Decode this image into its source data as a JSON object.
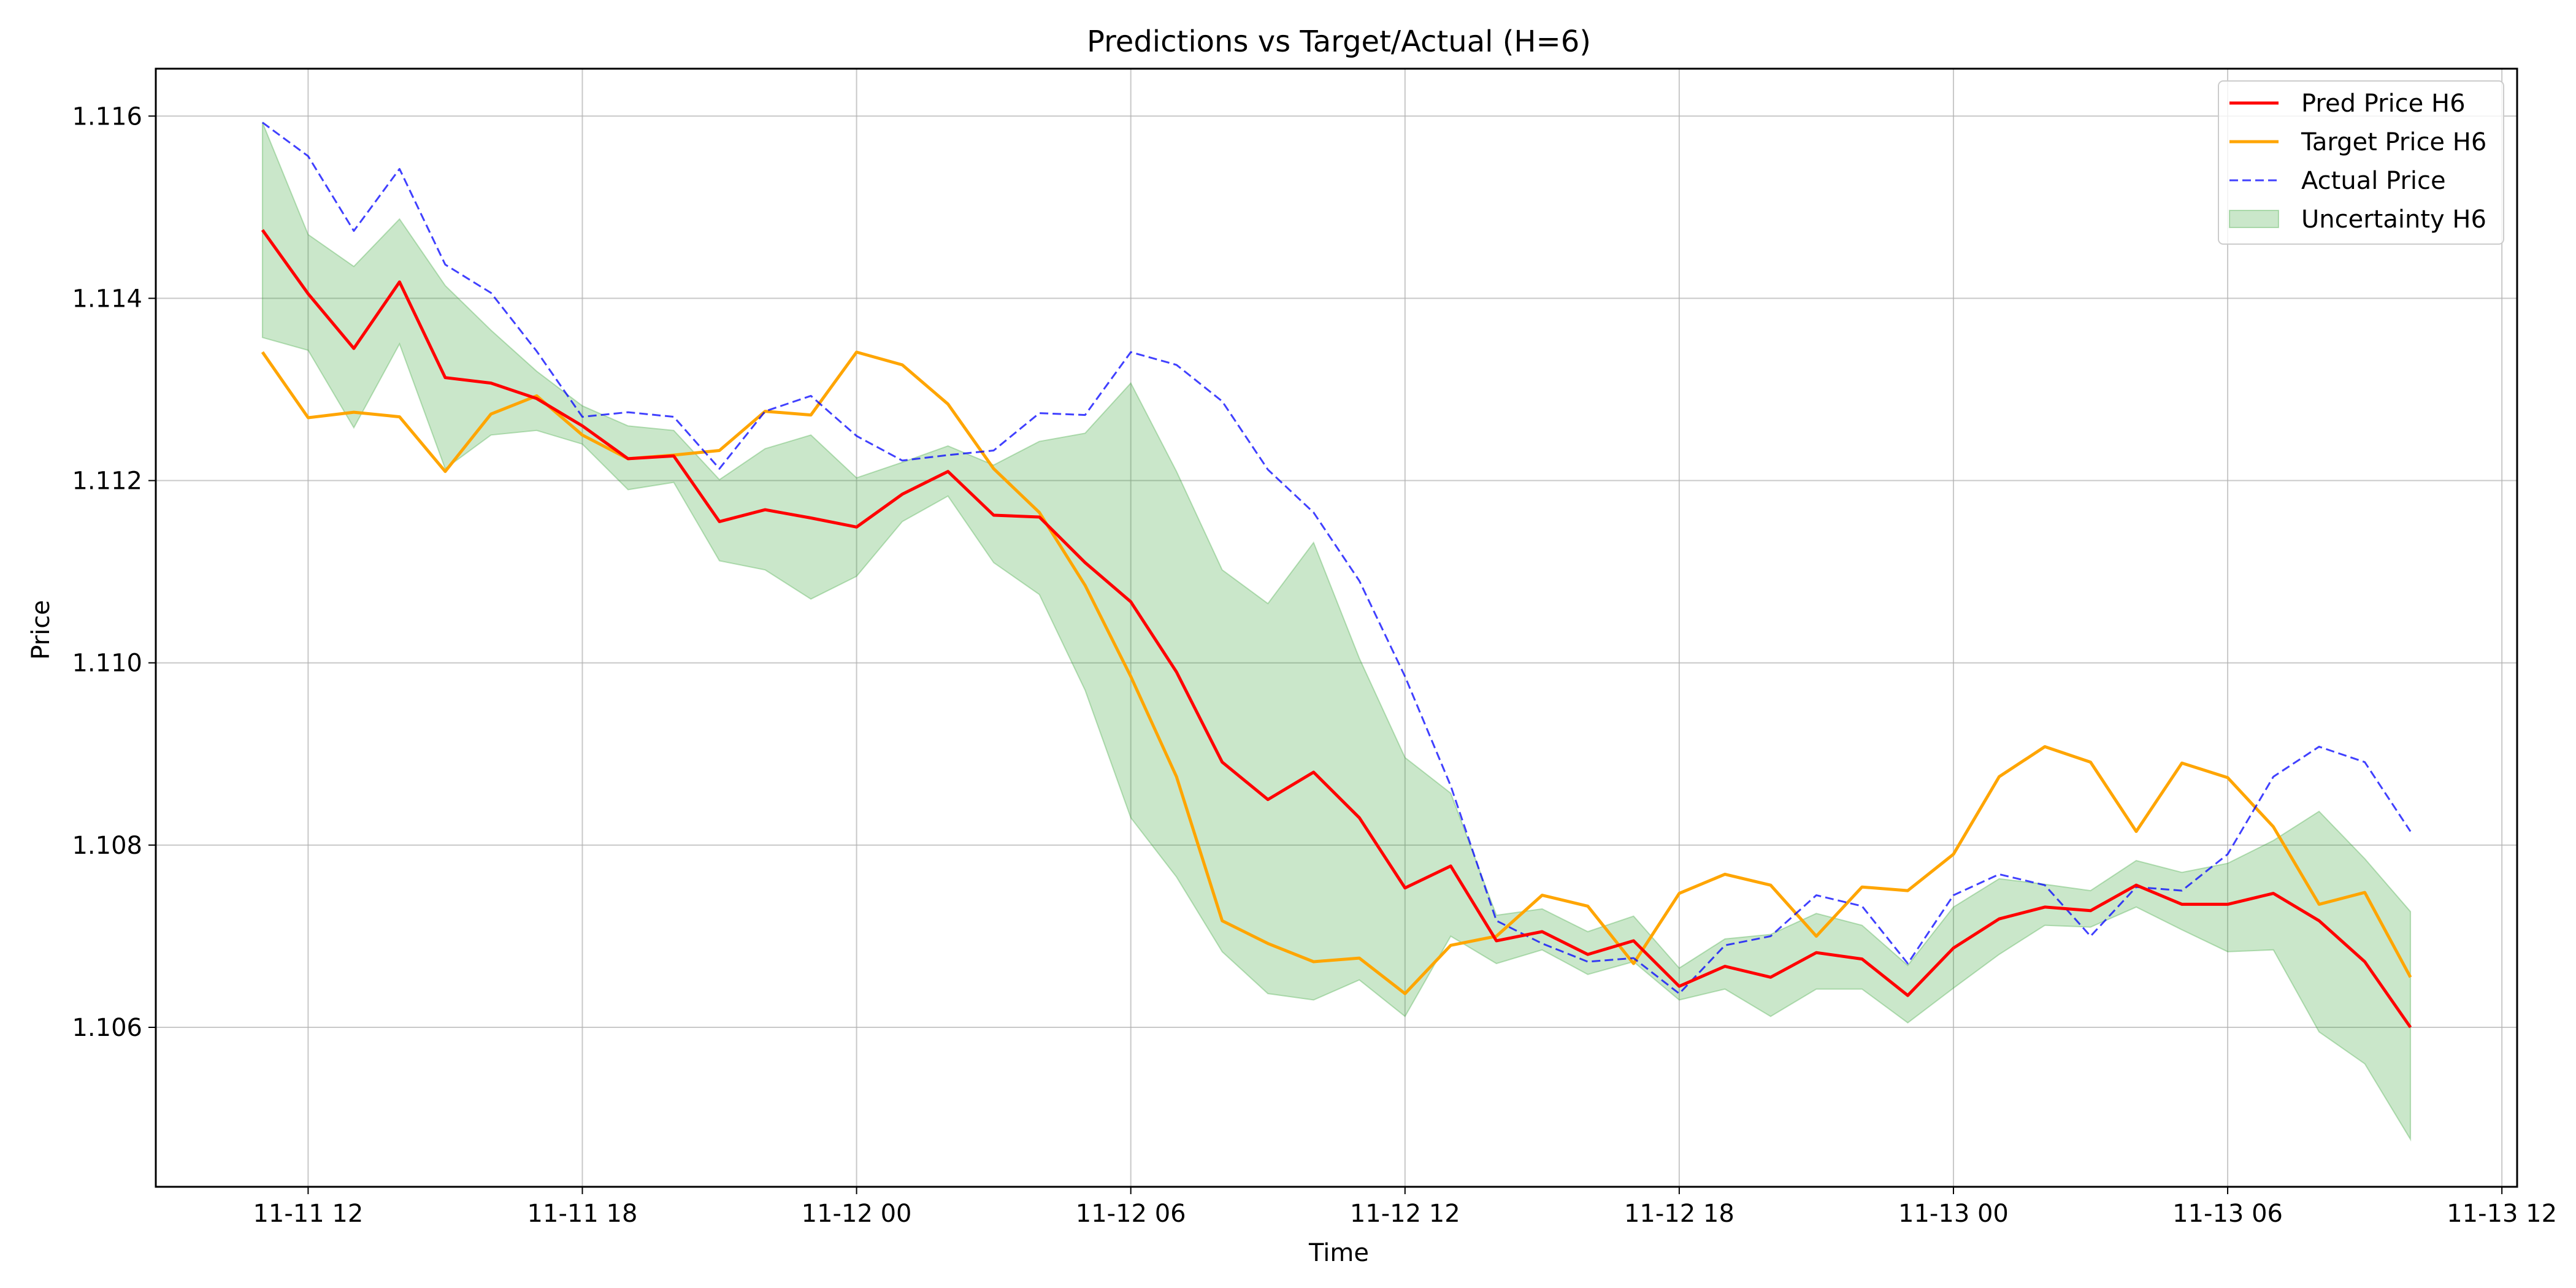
{
  "chart_data": {
    "type": "line",
    "title": "Predictions vs Target/Actual (H=6)",
    "xlabel": "Time",
    "ylabel": "Price",
    "x_start": "2023-11-11 11:00",
    "x_step_hours": 1,
    "xlim": [
      "2023-11-11 08:40",
      "2023-11-13 12:20"
    ],
    "ylim": [
      1.10425,
      1.11652
    ],
    "x_ticks": [
      {
        "t": "2023-11-11 12:00",
        "label": "11-11 12"
      },
      {
        "t": "2023-11-11 18:00",
        "label": "11-11 18"
      },
      {
        "t": "2023-11-12 00:00",
        "label": "11-12 00"
      },
      {
        "t": "2023-11-12 06:00",
        "label": "11-12 06"
      },
      {
        "t": "2023-11-12 12:00",
        "label": "11-12 12"
      },
      {
        "t": "2023-11-12 18:00",
        "label": "11-12 18"
      },
      {
        "t": "2023-11-13 00:00",
        "label": "11-13 00"
      },
      {
        "t": "2023-11-13 06:00",
        "label": "11-13 06"
      },
      {
        "t": "2023-11-13 12:00",
        "label": "11-13 12"
      }
    ],
    "y_ticks": [
      {
        "v": 1.106,
        "label": "1.106"
      },
      {
        "v": 1.108,
        "label": "1.108"
      },
      {
        "v": 1.11,
        "label": "1.110"
      },
      {
        "v": 1.112,
        "label": "1.112"
      },
      {
        "v": 1.114,
        "label": "1.114"
      },
      {
        "v": 1.116,
        "label": "1.116"
      }
    ],
    "grid": true,
    "legend_position": "top-right",
    "series": [
      {
        "name": "Pred Price H6",
        "kind": "line",
        "color": "#ff0000",
        "style": "solid",
        "values": [
          1.11475,
          1.11405,
          1.11345,
          1.11418,
          1.11313,
          1.11307,
          1.1129,
          1.1126,
          1.11224,
          1.11227,
          1.11155,
          1.11168,
          1.11159,
          1.11149,
          1.11185,
          1.1121,
          1.11162,
          1.1116,
          1.1111,
          1.11067,
          1.1099,
          1.10891,
          1.1085,
          1.1088,
          1.1083,
          1.10753,
          1.10777,
          1.10695,
          1.10705,
          1.1068,
          1.10695,
          1.10645,
          1.10667,
          1.10655,
          1.10682,
          1.10675,
          1.10635,
          1.10687,
          1.10719,
          1.10732,
          1.10728,
          1.10756,
          1.10735,
          1.10735,
          1.10747,
          1.10717,
          1.10672,
          1.106
        ]
      },
      {
        "name": "Target Price H6",
        "kind": "line",
        "color": "#ffa500",
        "style": "solid",
        "values": [
          1.11341,
          1.11269,
          1.11275,
          1.1127,
          1.1121,
          1.11273,
          1.11293,
          1.1125,
          1.11224,
          1.11228,
          1.11233,
          1.11276,
          1.11272,
          1.11341,
          1.11327,
          1.11284,
          1.11213,
          1.11165,
          1.11085,
          1.10985,
          1.10875,
          1.10717,
          1.10692,
          1.10672,
          1.10676,
          1.10637,
          1.1069,
          1.107,
          1.10745,
          1.10733,
          1.1067,
          1.10747,
          1.10768,
          1.10756,
          1.107,
          1.10754,
          1.1075,
          1.1079,
          1.10875,
          1.10908,
          1.10891,
          1.10815,
          1.1089,
          1.10874,
          1.1082,
          1.10735,
          1.10748,
          1.10655
        ]
      },
      {
        "name": "Actual Price",
        "kind": "line",
        "color": "#0000ff",
        "style": "dashed",
        "values": [
          1.11593,
          1.11556,
          1.11474,
          1.11542,
          1.11437,
          1.11406,
          1.11342,
          1.1127,
          1.11275,
          1.1127,
          1.11213,
          1.11276,
          1.11293,
          1.11249,
          1.11222,
          1.11228,
          1.11233,
          1.11274,
          1.11272,
          1.11341,
          1.11327,
          1.11287,
          1.11212,
          1.11165,
          1.1109,
          1.10985,
          1.10865,
          1.10717,
          1.10692,
          1.10672,
          1.10676,
          1.10637,
          1.1069,
          1.107,
          1.10745,
          1.10733,
          1.1067,
          1.10745,
          1.10768,
          1.10756,
          1.107,
          1.10754,
          1.1075,
          1.1079,
          1.10875,
          1.10908,
          1.10891,
          1.10815
        ]
      },
      {
        "name": "Uncertainty H6",
        "kind": "band",
        "color": "#2ca02c",
        "upper": [
          1.11593,
          1.1147,
          1.11435,
          1.11487,
          1.11414,
          1.11365,
          1.1132,
          1.11282,
          1.1126,
          1.11255,
          1.11201,
          1.11235,
          1.1125,
          1.11203,
          1.1122,
          1.11238,
          1.11217,
          1.11243,
          1.11252,
          1.11307,
          1.1121,
          1.11102,
          1.11065,
          1.11132,
          1.11005,
          1.10896,
          1.10857,
          1.10723,
          1.1073,
          1.10705,
          1.10722,
          1.10665,
          1.10697,
          1.10702,
          1.10725,
          1.10712,
          1.10668,
          1.10732,
          1.10763,
          1.10757,
          1.1075,
          1.10783,
          1.1077,
          1.1078,
          1.10805,
          1.10837,
          1.10785,
          1.10727
        ],
        "lower": [
          1.11357,
          1.11343,
          1.11258,
          1.1135,
          1.11213,
          1.1125,
          1.11255,
          1.1124,
          1.1119,
          1.11198,
          1.11112,
          1.11102,
          1.1107,
          1.11095,
          1.11155,
          1.11183,
          1.1111,
          1.11075,
          1.1097,
          1.1083,
          1.10765,
          1.10683,
          1.10637,
          1.1063,
          1.10652,
          1.10612,
          1.107,
          1.1067,
          1.10685,
          1.10658,
          1.10672,
          1.1063,
          1.10642,
          1.10612,
          1.10642,
          1.10642,
          1.10605,
          1.10643,
          1.1068,
          1.10712,
          1.1071,
          1.10732,
          1.10707,
          1.10683,
          1.10685,
          1.10595,
          1.1056,
          1.10477
        ]
      }
    ]
  }
}
